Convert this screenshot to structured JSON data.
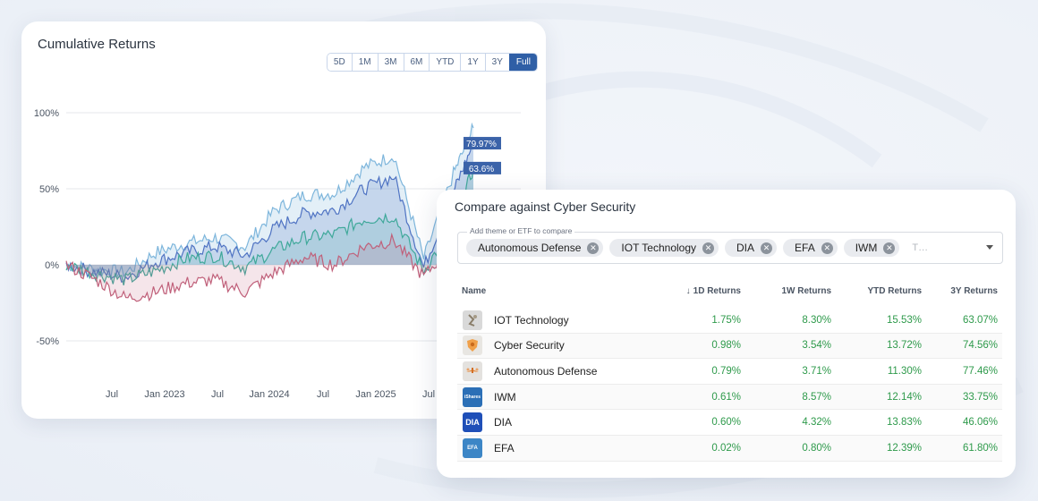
{
  "chart": {
    "title": "Cumulative Returns",
    "ranges": [
      "5D",
      "1M",
      "3M",
      "6M",
      "YTD",
      "1Y",
      "3Y",
      "Full"
    ],
    "active_range": "Full",
    "ticks_y": [
      "100%",
      "50%",
      "0%",
      "-50%"
    ],
    "ticks_x": [
      "Jul",
      "Jan 2023",
      "Jul",
      "Jan 2024",
      "Jul",
      "Jan 2025",
      "Jul"
    ],
    "end_labels": [
      "79.97%",
      "63.6%"
    ],
    "colors": {
      "c1": "#7eb6dc",
      "c2": "#4f73c3",
      "c3": "#3fa89a",
      "c4": "#c0607a",
      "label_bg": "#3b63a9"
    }
  },
  "chart_data": {
    "type": "area",
    "title": "Cumulative Returns",
    "xlabel": "",
    "ylabel": "",
    "ylim": [
      -60,
      100
    ],
    "x_tick_labels": [
      "Jul",
      "Jan 2023",
      "Jul",
      "Jan 2024",
      "Jul",
      "Jan 2025",
      "Jul"
    ],
    "y_tick_labels": [
      "100%",
      "50%",
      "0%",
      "-50%"
    ],
    "x": [
      "2022-04",
      "2022-07",
      "2022-10",
      "2023-01",
      "2023-04",
      "2023-07",
      "2023-10",
      "2024-01",
      "2024-04",
      "2024-07",
      "2024-10",
      "2025-01",
      "2025-04",
      "2025-07",
      "2025-09"
    ],
    "series": [
      {
        "values": [
          0,
          -3,
          -5,
          8,
          14,
          18,
          12,
          36,
          46,
          47,
          64,
          72,
          4,
          60,
          90
        ]
      },
      {
        "values": [
          0,
          -5,
          -8,
          2,
          8,
          12,
          6,
          24,
          34,
          36,
          50,
          58,
          -2,
          48,
          79.97
        ]
      },
      {
        "values": [
          0,
          -6,
          -10,
          -4,
          4,
          6,
          -2,
          10,
          18,
          20,
          30,
          32,
          -4,
          26,
          63.6
        ]
      },
      {
        "values": [
          0,
          -10,
          -22,
          -18,
          -12,
          -10,
          -18,
          -5,
          5,
          0,
          12,
          16,
          -8,
          15,
          22
        ]
      }
    ],
    "annotations": [
      "79.97%",
      "63.6%"
    ]
  },
  "compare": {
    "title": "Compare against Cyber Security",
    "picker_legend": "Add theme or ETF to compare",
    "chips": [
      "Autonomous Defense",
      "IOT Technology",
      "DIA",
      "EFA",
      "IWM"
    ],
    "placeholder": "T…",
    "headers": {
      "name": "Name",
      "d1": "1D Returns",
      "w1": "1W Returns",
      "ytd": "YTD Returns",
      "y3": "3Y Returns"
    },
    "rows": [
      {
        "name": "IOT Technology",
        "icon": "iot-technology-icon",
        "d1": "1.75%",
        "w1": "8.30%",
        "ytd": "15.53%",
        "y3": "63.07%"
      },
      {
        "name": "Cyber Security",
        "icon": "cyber-security-icon",
        "d1": "0.98%",
        "w1": "3.54%",
        "ytd": "13.72%",
        "y3": "74.56%"
      },
      {
        "name": "Autonomous Defense",
        "icon": "autonomous-defense-icon",
        "d1": "0.79%",
        "w1": "3.71%",
        "ytd": "11.30%",
        "y3": "77.46%"
      },
      {
        "name": "IWM",
        "icon": "ishares-iwm-icon",
        "logo_text": "iShares",
        "d1": "0.61%",
        "w1": "8.57%",
        "ytd": "12.14%",
        "y3": "33.75%"
      },
      {
        "name": "DIA",
        "icon": "dia-icon",
        "logo_text": "DIA",
        "d1": "0.60%",
        "w1": "4.32%",
        "ytd": "13.83%",
        "y3": "46.06%"
      },
      {
        "name": "EFA",
        "icon": "efa-icon",
        "logo_text": "EFA",
        "d1": "0.02%",
        "w1": "0.80%",
        "ytd": "12.39%",
        "y3": "61.80%"
      }
    ],
    "colors": {
      "positive": "#2e9a4b"
    }
  }
}
